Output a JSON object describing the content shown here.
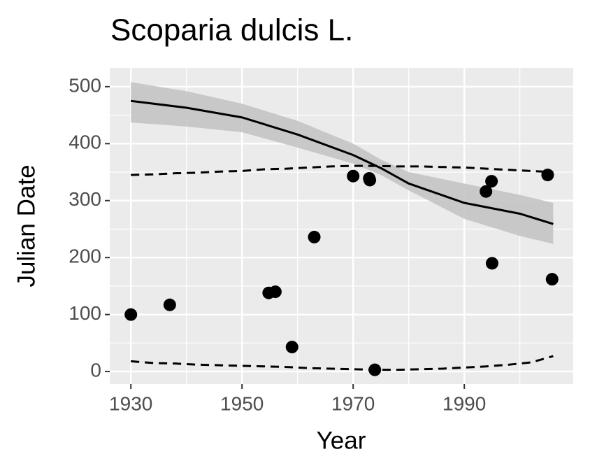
{
  "chart_data": {
    "type": "scatter",
    "title": "Scoparia dulcis L.",
    "x_label": "Year",
    "y_label": "Julian Date",
    "xlim": [
      1926.2,
      2009.6
    ],
    "ylim": [
      -22,
      533
    ],
    "xticks": [
      1930,
      1950,
      1970,
      1990
    ],
    "yticks": [
      0,
      100,
      200,
      300,
      400,
      500
    ],
    "grid": true,
    "points": {
      "color": "#000000",
      "x": [
        1930,
        1937,
        1954.8,
        1956,
        1959,
        1963,
        1970,
        1972.9,
        1973,
        1973.9,
        1993.9,
        1994.9,
        1995,
        2005,
        2005.8
      ],
      "y": [
        100,
        117,
        138,
        140,
        43,
        236,
        343,
        339,
        336,
        3,
        316,
        334,
        190,
        345,
        162
      ]
    },
    "fit": {
      "color": "#000000",
      "band_color": "#c4c4c4",
      "x": [
        1930,
        1940,
        1950,
        1960,
        1970,
        1975,
        1980,
        1990,
        2000,
        2006
      ],
      "y": [
        475,
        463,
        446,
        416,
        380,
        357,
        330,
        296,
        277,
        259
      ],
      "lower": [
        437,
        430,
        420,
        393,
        365,
        345,
        318,
        268,
        238,
        224
      ],
      "upper": [
        508,
        492,
        470,
        440,
        400,
        372,
        350,
        330,
        310,
        296
      ]
    },
    "bounds": {
      "color": "#000000",
      "line_style": "dashed",
      "x": [
        1930,
        1934,
        1938,
        1942,
        1946,
        1950,
        1954,
        1958,
        1962,
        1966,
        1970,
        1974,
        1978,
        1982,
        1986,
        1990,
        1994,
        1998,
        2002,
        2006
      ],
      "upper": [
        345,
        346,
        348,
        349,
        351,
        352,
        355,
        356,
        358,
        360,
        361,
        361,
        360,
        360,
        359,
        358,
        356,
        354,
        352,
        350
      ],
      "lower": [
        18,
        15,
        14,
        12,
        11,
        10,
        9,
        8,
        6,
        5,
        4,
        3,
        3,
        4,
        5,
        7,
        9,
        12,
        16,
        27
      ]
    }
  }
}
